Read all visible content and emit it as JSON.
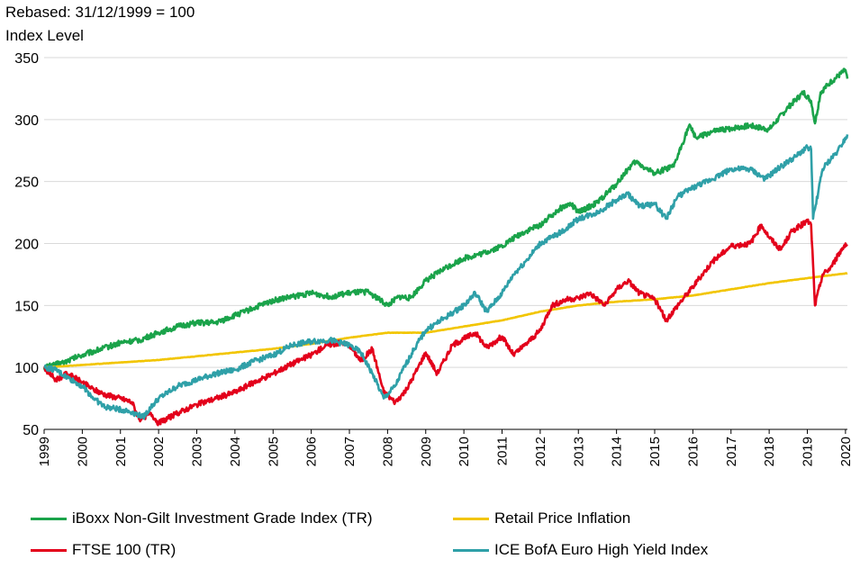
{
  "chart_data": {
    "type": "line",
    "title": "Rebased: 31/12/1999 = 100",
    "ylabel": "Index Level",
    "xlabel": "",
    "ylim": [
      50,
      350
    ],
    "xlim": [
      1999.0,
      2020.05
    ],
    "y_ticks": [
      50,
      100,
      150,
      200,
      250,
      300,
      350
    ],
    "x_ticks": [
      "1999",
      "2000",
      "2001",
      "2002",
      "2003",
      "2004",
      "2005",
      "2006",
      "2007",
      "2008",
      "2009",
      "2010",
      "2011",
      "2012",
      "2013",
      "2014",
      "2015",
      "2016",
      "2017",
      "2018",
      "2019",
      "2020"
    ],
    "grid": "horizontal",
    "legend_position": "bottom",
    "series": [
      {
        "name": "iBoxx Non-Gilt Investment Grade Index (TR)",
        "color": "#1aa34a",
        "points": [
          [
            1999.0,
            100
          ],
          [
            1999.5,
            104
          ],
          [
            2000.0,
            110
          ],
          [
            2000.5,
            115
          ],
          [
            2001.0,
            120
          ],
          [
            2001.5,
            122
          ],
          [
            2002.0,
            128
          ],
          [
            2002.5,
            133
          ],
          [
            2003.0,
            136
          ],
          [
            2003.5,
            136
          ],
          [
            2004.0,
            142
          ],
          [
            2004.5,
            148
          ],
          [
            2005.0,
            154
          ],
          [
            2005.5,
            157
          ],
          [
            2006.0,
            160
          ],
          [
            2006.5,
            157
          ],
          [
            2007.0,
            160
          ],
          [
            2007.5,
            161
          ],
          [
            2008.0,
            150
          ],
          [
            2008.3,
            157
          ],
          [
            2008.6,
            156
          ],
          [
            2009.0,
            170
          ],
          [
            2009.5,
            180
          ],
          [
            2010.0,
            188
          ],
          [
            2010.5,
            192
          ],
          [
            2011.0,
            198
          ],
          [
            2011.5,
            208
          ],
          [
            2012.0,
            215
          ],
          [
            2012.5,
            228
          ],
          [
            2012.8,
            232
          ],
          [
            2013.0,
            225
          ],
          [
            2013.5,
            233
          ],
          [
            2014.0,
            248
          ],
          [
            2014.3,
            260
          ],
          [
            2014.5,
            266
          ],
          [
            2014.8,
            260
          ],
          [
            2015.0,
            257
          ],
          [
            2015.5,
            262
          ],
          [
            2015.9,
            295
          ],
          [
            2016.1,
            285
          ],
          [
            2016.5,
            290
          ],
          [
            2017.0,
            293
          ],
          [
            2017.5,
            295
          ],
          [
            2018.0,
            292
          ],
          [
            2018.5,
            310
          ],
          [
            2018.9,
            322
          ],
          [
            2019.1,
            315
          ],
          [
            2019.2,
            297
          ],
          [
            2019.35,
            322
          ],
          [
            2019.6,
            330
          ],
          [
            2020.0,
            340
          ],
          [
            2020.05,
            333
          ]
        ]
      },
      {
        "name": "Retail Price Inflation",
        "color": "#f2c500",
        "points": [
          [
            1999.0,
            100
          ],
          [
            2000.0,
            102
          ],
          [
            2001.0,
            104
          ],
          [
            2002.0,
            106
          ],
          [
            2003.0,
            109
          ],
          [
            2004.0,
            112
          ],
          [
            2005.0,
            115
          ],
          [
            2006.0,
            119
          ],
          [
            2007.0,
            124
          ],
          [
            2008.0,
            128
          ],
          [
            2009.0,
            128
          ],
          [
            2010.0,
            133
          ],
          [
            2011.0,
            138
          ],
          [
            2012.0,
            145
          ],
          [
            2013.0,
            150
          ],
          [
            2014.0,
            153
          ],
          [
            2015.0,
            155
          ],
          [
            2016.0,
            158
          ],
          [
            2017.0,
            163
          ],
          [
            2018.0,
            168
          ],
          [
            2019.0,
            172
          ],
          [
            2019.5,
            174
          ],
          [
            2020.05,
            176
          ]
        ]
      },
      {
        "name": "FTSE 100 (TR)",
        "color": "#e3001b",
        "points": [
          [
            1999.0,
            100
          ],
          [
            1999.3,
            90
          ],
          [
            1999.6,
            95
          ],
          [
            2000.0,
            88
          ],
          [
            2000.3,
            82
          ],
          [
            2000.6,
            78
          ],
          [
            2001.0,
            75
          ],
          [
            2001.3,
            72
          ],
          [
            2001.5,
            58
          ],
          [
            2001.8,
            63
          ],
          [
            2002.0,
            55
          ],
          [
            2002.3,
            60
          ],
          [
            2002.7,
            66
          ],
          [
            2003.0,
            70
          ],
          [
            2003.5,
            75
          ],
          [
            2004.0,
            80
          ],
          [
            2004.5,
            88
          ],
          [
            2005.0,
            95
          ],
          [
            2005.5,
            103
          ],
          [
            2006.0,
            110
          ],
          [
            2006.4,
            118
          ],
          [
            2006.8,
            120
          ],
          [
            2007.0,
            118
          ],
          [
            2007.3,
            105
          ],
          [
            2007.6,
            115
          ],
          [
            2007.9,
            80
          ],
          [
            2008.2,
            72
          ],
          [
            2008.5,
            82
          ],
          [
            2008.8,
            100
          ],
          [
            2009.0,
            112
          ],
          [
            2009.3,
            95
          ],
          [
            2009.7,
            118
          ],
          [
            2010.0,
            123
          ],
          [
            2010.3,
            128
          ],
          [
            2010.6,
            116
          ],
          [
            2011.0,
            125
          ],
          [
            2011.3,
            110
          ],
          [
            2011.6,
            118
          ],
          [
            2012.0,
            130
          ],
          [
            2012.3,
            150
          ],
          [
            2012.7,
            155
          ],
          [
            2013.0,
            156
          ],
          [
            2013.3,
            160
          ],
          [
            2013.7,
            150
          ],
          [
            2014.0,
            163
          ],
          [
            2014.3,
            170
          ],
          [
            2014.6,
            160
          ],
          [
            2015.0,
            155
          ],
          [
            2015.3,
            138
          ],
          [
            2015.6,
            150
          ],
          [
            2016.0,
            165
          ],
          [
            2016.5,
            185
          ],
          [
            2017.0,
            198
          ],
          [
            2017.5,
            200
          ],
          [
            2017.8,
            215
          ],
          [
            2018.0,
            205
          ],
          [
            2018.3,
            195
          ],
          [
            2018.6,
            210
          ],
          [
            2019.0,
            218
          ],
          [
            2019.1,
            215
          ],
          [
            2019.2,
            150
          ],
          [
            2019.4,
            175
          ],
          [
            2019.6,
            180
          ],
          [
            2019.8,
            190
          ],
          [
            2020.0,
            200
          ],
          [
            2020.05,
            198
          ]
        ]
      },
      {
        "name": "ICE BofA Euro High Yield Index",
        "color": "#2fa0a8",
        "points": [
          [
            1999.0,
            100
          ],
          [
            1999.3,
            98
          ],
          [
            1999.6,
            92
          ],
          [
            2000.0,
            85
          ],
          [
            2000.3,
            75
          ],
          [
            2000.6,
            68
          ],
          [
            2001.0,
            66
          ],
          [
            2001.3,
            64
          ],
          [
            2001.6,
            60
          ],
          [
            2001.8,
            68
          ],
          [
            2002.0,
            75
          ],
          [
            2002.5,
            85
          ],
          [
            2003.0,
            90
          ],
          [
            2003.5,
            95
          ],
          [
            2004.0,
            98
          ],
          [
            2004.5,
            105
          ],
          [
            2005.0,
            110
          ],
          [
            2005.5,
            118
          ],
          [
            2006.0,
            121
          ],
          [
            2006.5,
            122
          ],
          [
            2007.0,
            118
          ],
          [
            2007.3,
            112
          ],
          [
            2007.6,
            95
          ],
          [
            2007.9,
            75
          ],
          [
            2008.2,
            85
          ],
          [
            2008.4,
            98
          ],
          [
            2008.7,
            115
          ],
          [
            2009.0,
            130
          ],
          [
            2009.5,
            140
          ],
          [
            2010.0,
            150
          ],
          [
            2010.3,
            160
          ],
          [
            2010.6,
            145
          ],
          [
            2011.0,
            160
          ],
          [
            2011.3,
            175
          ],
          [
            2011.6,
            185
          ],
          [
            2012.0,
            200
          ],
          [
            2012.3,
            205
          ],
          [
            2012.6,
            210
          ],
          [
            2013.0,
            220
          ],
          [
            2013.5,
            225
          ],
          [
            2014.0,
            235
          ],
          [
            2014.3,
            240
          ],
          [
            2014.6,
            230
          ],
          [
            2015.0,
            232
          ],
          [
            2015.3,
            220
          ],
          [
            2015.6,
            238
          ],
          [
            2016.0,
            245
          ],
          [
            2016.5,
            252
          ],
          [
            2017.0,
            260
          ],
          [
            2017.5,
            260
          ],
          [
            2017.9,
            252
          ],
          [
            2018.3,
            262
          ],
          [
            2018.7,
            270
          ],
          [
            2019.0,
            278
          ],
          [
            2019.1,
            276
          ],
          [
            2019.15,
            220
          ],
          [
            2019.4,
            260
          ],
          [
            2019.8,
            275
          ],
          [
            2020.05,
            288
          ]
        ]
      }
    ]
  }
}
